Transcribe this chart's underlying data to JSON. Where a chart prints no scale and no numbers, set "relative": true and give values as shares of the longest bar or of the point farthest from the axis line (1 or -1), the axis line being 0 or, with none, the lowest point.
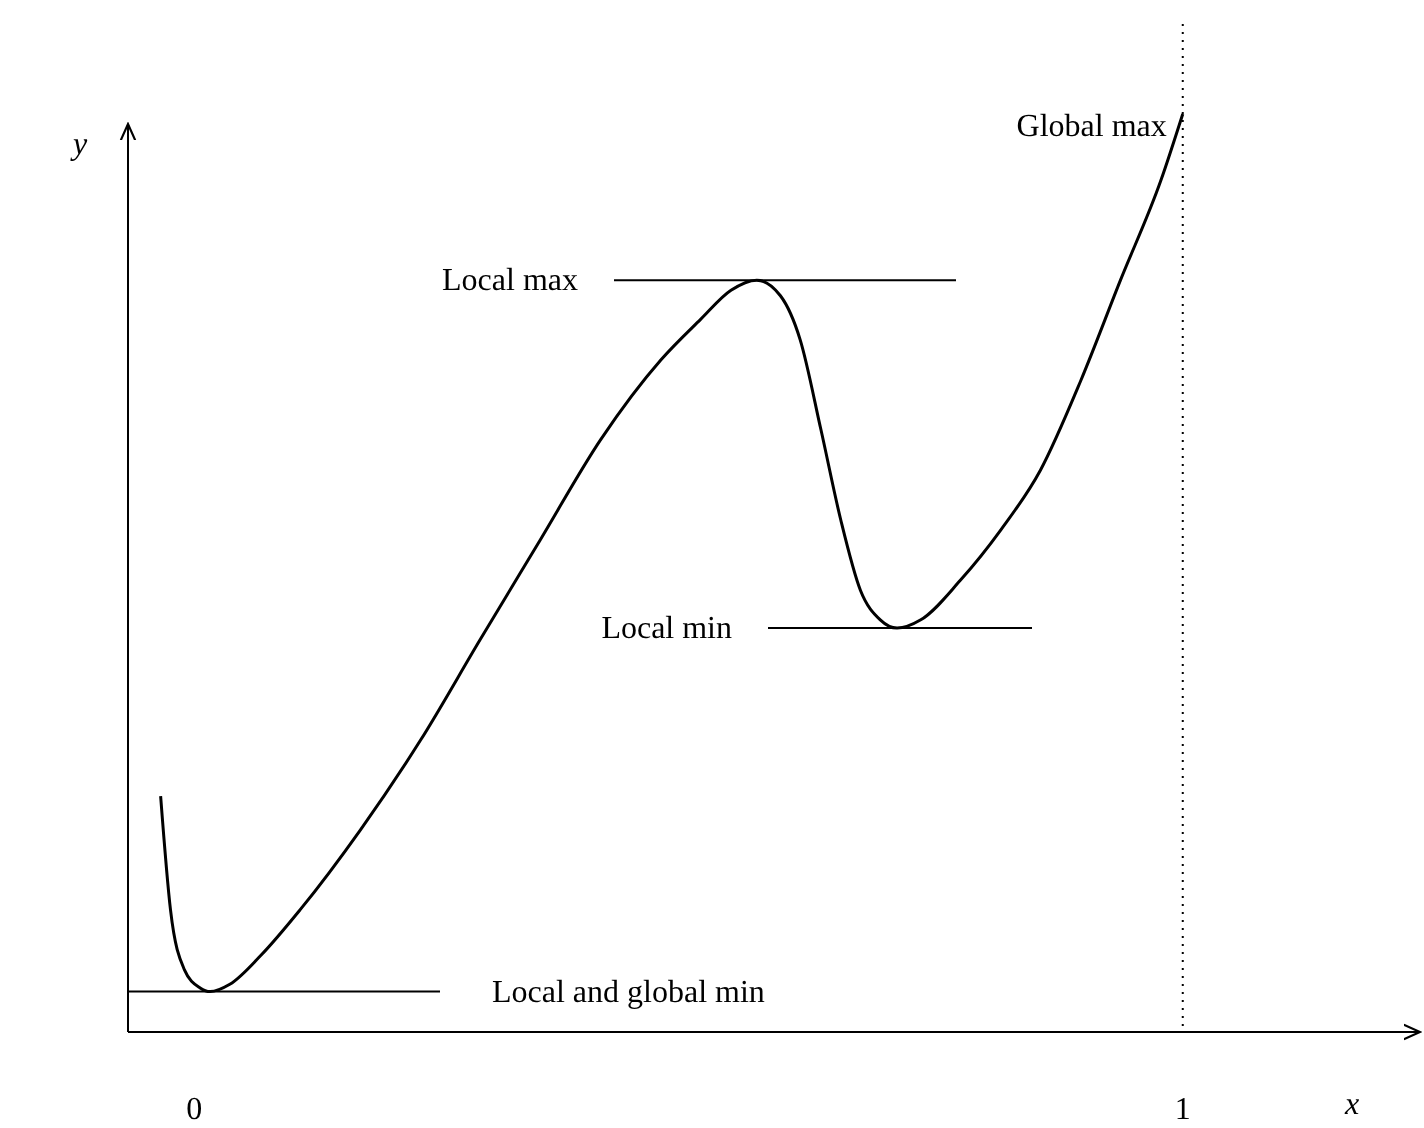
{
  "chart_data": {
    "type": "line",
    "xlabel": "x",
    "ylabel": "y",
    "relative": true,
    "xlim": [
      -0.067,
      1.24
    ],
    "xticks": [
      0,
      1
    ],
    "marker": "none",
    "line_style": "solid",
    "series": [
      {
        "color": "#000000",
        "x": [
          -0.034,
          -0.024,
          -0.01,
          0.006,
          0.016,
          0.036,
          0.067,
          0.107,
          0.168,
          0.229,
          0.289,
          0.35,
          0.411,
          0.472,
          0.512,
          0.543,
          0.569,
          0.593,
          0.613,
          0.634,
          0.654,
          0.674,
          0.694,
          0.711,
          0.735,
          0.775,
          0.816,
          0.856,
          0.897,
          0.937,
          0.978,
          1
        ],
        "values": [
          0.257,
          0.133,
          0.068,
          0.048,
          0.044,
          0.052,
          0.083,
          0.133,
          0.22,
          0.318,
          0.427,
          0.536,
          0.645,
          0.732,
          0.776,
          0.808,
          0.819,
          0.802,
          0.754,
          0.656,
          0.558,
          0.481,
          0.449,
          0.44,
          0.449,
          0.492,
          0.547,
          0.612,
          0.71,
          0.819,
          0.928,
          1
        ]
      }
    ],
    "ref_lines": [
      {
        "axis": "y",
        "value": 0.044,
        "label": "Local and global min",
        "color": "#000000",
        "line_style": "solid"
      },
      {
        "axis": "y",
        "value": 0.819,
        "label": "Local max",
        "color": "#000000",
        "line_style": "solid"
      },
      {
        "axis": "y",
        "value": 0.44,
        "label": "Local min",
        "color": "#000000",
        "line_style": "solid"
      },
      {
        "axis": "x",
        "value": 1,
        "label": "Global max",
        "color": "#000000",
        "line_style": "dotted"
      }
    ]
  }
}
